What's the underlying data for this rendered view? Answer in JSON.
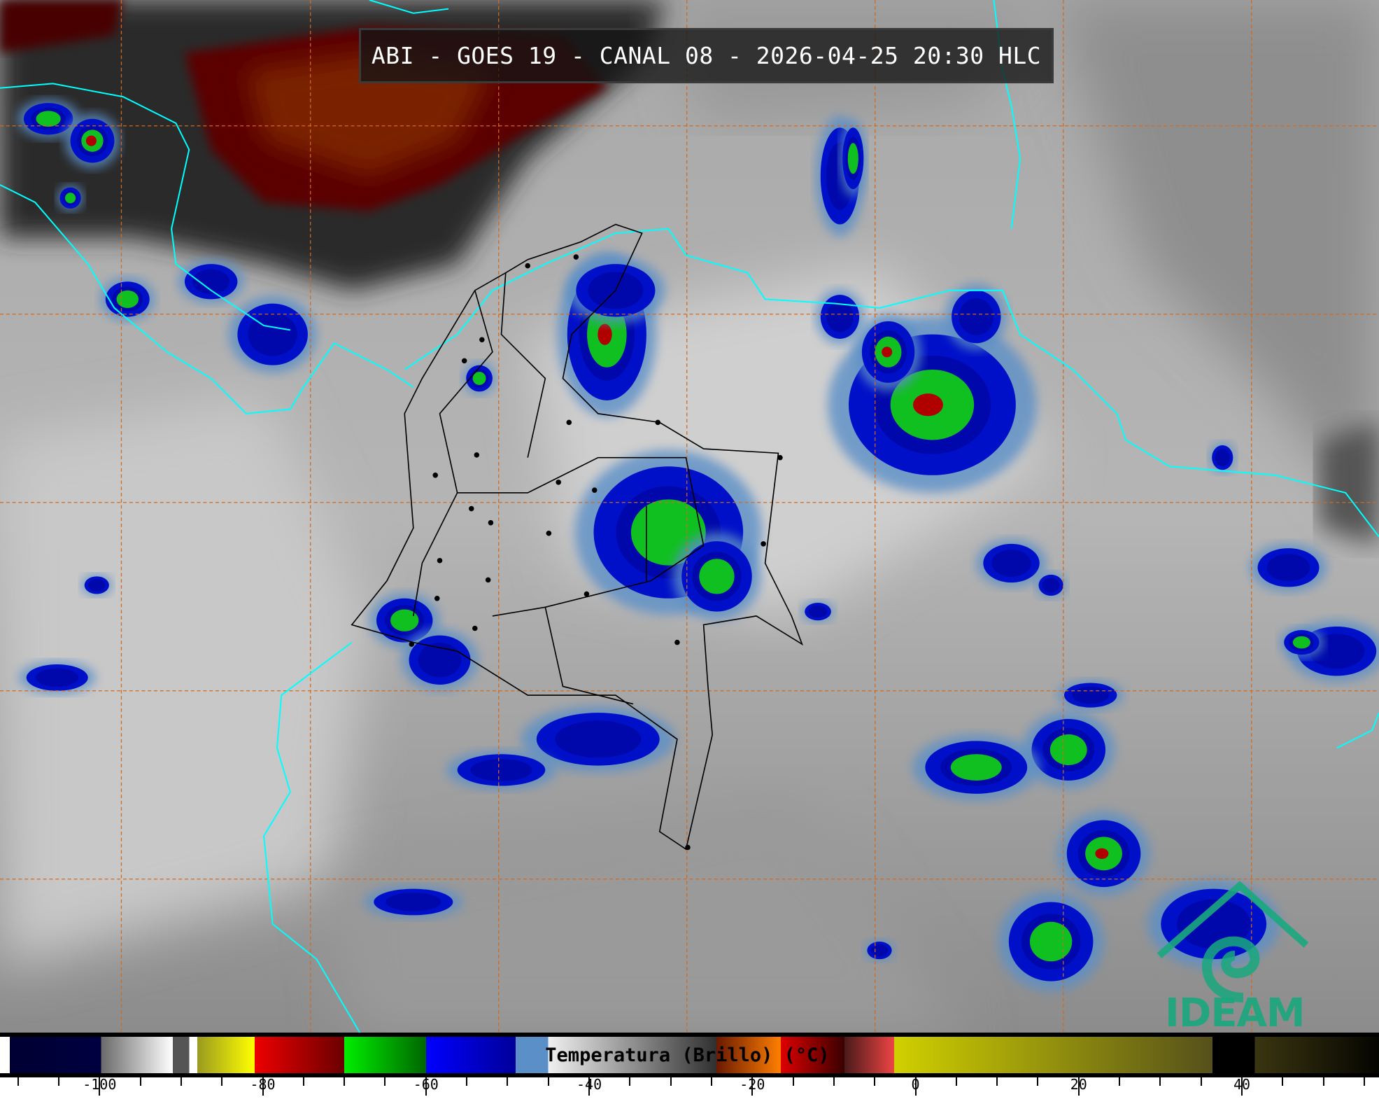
{
  "title": "ABI - GOES 19 - CANAL 08 - 2026-04-25 20:30 HLC",
  "colorbar": {
    "label": "Temperatura (Brillo) (°C)",
    "range": [
      -112.2,
      56.8
    ],
    "major_ticks": [
      -100,
      -80,
      -60,
      -40,
      -20,
      0,
      20,
      40
    ],
    "minor_step": 5,
    "stops": [
      {
        "from": -112.2,
        "to": -111,
        "c1": "#ffffff",
        "c2": "#ffffff"
      },
      {
        "from": -111,
        "to": -99.8,
        "c1": "#000033",
        "c2": "#000040"
      },
      {
        "from": -99.8,
        "to": -91,
        "c1": "#6a6a6a",
        "c2": "#ffffff"
      },
      {
        "from": -91,
        "to": -89,
        "c1": "#555555",
        "c2": "#555555"
      },
      {
        "from": -89,
        "to": -88,
        "c1": "#ffffff",
        "c2": "#ffffff"
      },
      {
        "from": -88,
        "to": -81,
        "c1": "#9a9a20",
        "c2": "#ffff00"
      },
      {
        "from": -81,
        "to": -70,
        "c1": "#ee0000",
        "c2": "#6a0000"
      },
      {
        "from": -70,
        "to": -60,
        "c1": "#00ee00",
        "c2": "#006600"
      },
      {
        "from": -60,
        "to": -49,
        "c1": "#0000ff",
        "c2": "#00009a"
      },
      {
        "from": -49,
        "to": -45,
        "c1": "#5b8fc7",
        "c2": "#5b8fc7"
      },
      {
        "from": -45,
        "to": -24.4,
        "c1": "#f0f0f0",
        "c2": "#303030"
      },
      {
        "from": -24.4,
        "to": -16.5,
        "c1": "#6a1a00",
        "c2": "#ff7f00"
      },
      {
        "from": -16.5,
        "to": -8.7,
        "c1": "#dd0000",
        "c2": "#3a0000"
      },
      {
        "from": -8.7,
        "to": -2.6,
        "c1": "#4a1a1a",
        "c2": "#ee4444"
      },
      {
        "from": -2.6,
        "to": 36.4,
        "c1": "#d0d000",
        "c2": "#55501a"
      },
      {
        "from": 36.4,
        "to": 41.6,
        "c1": "#000000",
        "c2": "#000000"
      },
      {
        "from": 41.6,
        "to": 56.8,
        "c1": "#3a3510",
        "c2": "#050500"
      }
    ]
  },
  "colors": {
    "coastline": "#00ffff",
    "borders": "#000000",
    "grid": "#d2691e"
  },
  "logo": {
    "text": "IDEAM",
    "color": "#19a87e"
  }
}
